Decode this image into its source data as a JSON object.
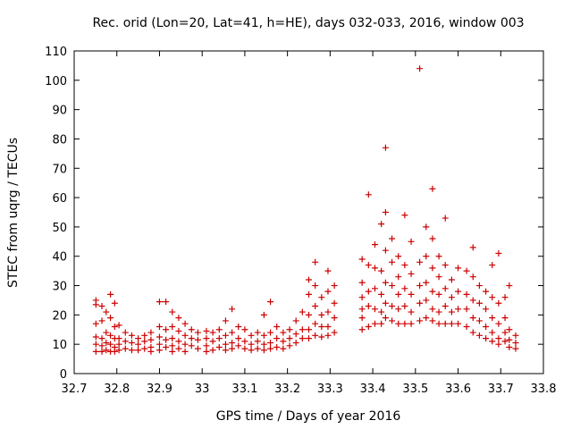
{
  "chart_data": {
    "type": "scatter",
    "title": "Rec. orid (Lon=20, Lat=41, h=HE), days 032-033, 2016, window 003",
    "xlabel": "GPS time / Days of year 2016",
    "ylabel": "STEC from uqrg / TECUs",
    "xlim": [
      32.7,
      33.8
    ],
    "ylim": [
      0,
      110
    ],
    "xticks": [
      "32.7",
      "32.8",
      "32.9",
      "33",
      "33.1",
      "33.2",
      "33.3",
      "33.4",
      "33.5",
      "33.6",
      "33.7",
      "33.8"
    ],
    "yticks": [
      "0",
      "10",
      "20",
      "30",
      "40",
      "50",
      "60",
      "70",
      "80",
      "90",
      "100",
      "110"
    ],
    "grid": false,
    "legend": "none",
    "marker": "plus",
    "color": "#cc0000",
    "series": [
      {
        "values": [
          [
            32.751,
            25
          ],
          [
            32.751,
            23.5
          ],
          [
            32.751,
            17
          ],
          [
            32.751,
            12.5
          ],
          [
            32.751,
            10
          ],
          [
            32.751,
            7.5
          ],
          [
            32.765,
            23
          ],
          [
            32.765,
            18
          ],
          [
            32.765,
            12
          ],
          [
            32.765,
            9.5
          ],
          [
            32.765,
            7.5
          ],
          [
            32.775,
            21
          ],
          [
            32.775,
            14
          ],
          [
            32.775,
            10.5
          ],
          [
            32.775,
            8
          ],
          [
            32.785,
            27
          ],
          [
            32.785,
            19
          ],
          [
            32.785,
            13
          ],
          [
            32.785,
            10
          ],
          [
            32.785,
            7.5
          ],
          [
            32.795,
            24
          ],
          [
            32.795,
            16
          ],
          [
            32.795,
            12
          ],
          [
            32.795,
            9
          ],
          [
            32.795,
            7.5
          ],
          [
            32.805,
            16.5
          ],
          [
            32.805,
            12
          ],
          [
            32.805,
            10
          ],
          [
            32.805,
            8
          ],
          [
            32.82,
            14
          ],
          [
            32.82,
            11
          ],
          [
            32.82,
            8.5
          ],
          [
            32.835,
            13
          ],
          [
            32.835,
            10.5
          ],
          [
            32.835,
            8
          ],
          [
            32.85,
            12
          ],
          [
            32.85,
            10
          ],
          [
            32.85,
            8
          ],
          [
            32.865,
            13
          ],
          [
            32.865,
            11
          ],
          [
            32.865,
            8.5
          ],
          [
            32.88,
            14
          ],
          [
            32.88,
            11.5
          ],
          [
            32.88,
            9
          ],
          [
            32.88,
            7.5
          ],
          [
            32.9,
            24.5
          ],
          [
            32.9,
            16
          ],
          [
            32.9,
            12.5
          ],
          [
            32.9,
            10
          ],
          [
            32.9,
            8
          ],
          [
            32.915,
            24.5
          ],
          [
            32.915,
            15
          ],
          [
            32.915,
            11.5
          ],
          [
            32.915,
            9
          ],
          [
            32.93,
            21
          ],
          [
            32.93,
            16
          ],
          [
            32.93,
            12
          ],
          [
            32.93,
            9.5
          ],
          [
            32.93,
            7.5
          ],
          [
            32.945,
            19
          ],
          [
            32.945,
            14.5
          ],
          [
            32.945,
            11
          ],
          [
            32.945,
            8.5
          ],
          [
            32.96,
            17
          ],
          [
            32.96,
            13
          ],
          [
            32.96,
            10
          ],
          [
            32.96,
            7.5
          ],
          [
            32.975,
            15
          ],
          [
            32.975,
            12
          ],
          [
            32.975,
            9.5
          ],
          [
            32.99,
            14
          ],
          [
            32.99,
            11.5
          ],
          [
            32.99,
            8.5
          ],
          [
            33.01,
            14.5
          ],
          [
            33.01,
            12
          ],
          [
            33.01,
            9.5
          ],
          [
            33.01,
            7.5
          ],
          [
            33.025,
            14
          ],
          [
            33.025,
            11
          ],
          [
            33.025,
            8
          ],
          [
            33.04,
            15
          ],
          [
            33.04,
            12
          ],
          [
            33.04,
            9
          ],
          [
            33.055,
            18
          ],
          [
            33.055,
            13
          ],
          [
            33.055,
            10
          ],
          [
            33.055,
            8
          ],
          [
            33.07,
            22
          ],
          [
            33.07,
            14
          ],
          [
            33.07,
            10.5
          ],
          [
            33.07,
            8.5
          ],
          [
            33.085,
            16
          ],
          [
            33.085,
            12
          ],
          [
            33.085,
            9.5
          ],
          [
            33.1,
            15
          ],
          [
            33.1,
            11
          ],
          [
            33.1,
            8.5
          ],
          [
            33.115,
            13
          ],
          [
            33.115,
            10
          ],
          [
            33.115,
            8
          ],
          [
            33.13,
            14
          ],
          [
            33.13,
            11
          ],
          [
            33.13,
            8.5
          ],
          [
            33.145,
            20
          ],
          [
            33.145,
            13
          ],
          [
            33.145,
            10
          ],
          [
            33.145,
            8
          ],
          [
            33.16,
            24.5
          ],
          [
            33.16,
            14
          ],
          [
            33.16,
            10.5
          ],
          [
            33.16,
            8.5
          ],
          [
            33.175,
            16
          ],
          [
            33.175,
            12
          ],
          [
            33.175,
            9
          ],
          [
            33.19,
            14
          ],
          [
            33.19,
            11
          ],
          [
            33.19,
            8.5
          ],
          [
            33.205,
            15
          ],
          [
            33.205,
            12
          ],
          [
            33.205,
            9.5
          ],
          [
            33.22,
            18
          ],
          [
            33.22,
            13.5
          ],
          [
            33.22,
            10.5
          ],
          [
            33.235,
            21
          ],
          [
            33.235,
            15
          ],
          [
            33.235,
            12
          ],
          [
            33.25,
            32
          ],
          [
            33.25,
            27
          ],
          [
            33.25,
            20
          ],
          [
            33.25,
            15
          ],
          [
            33.25,
            12
          ],
          [
            33.265,
            38
          ],
          [
            33.265,
            30
          ],
          [
            33.265,
            23
          ],
          [
            33.265,
            17
          ],
          [
            33.265,
            13
          ],
          [
            33.28,
            26
          ],
          [
            33.28,
            20
          ],
          [
            33.28,
            16
          ],
          [
            33.28,
            12.5
          ],
          [
            33.295,
            35
          ],
          [
            33.295,
            28
          ],
          [
            33.295,
            21
          ],
          [
            33.295,
            16
          ],
          [
            33.295,
            13
          ],
          [
            33.31,
            30
          ],
          [
            33.31,
            24
          ],
          [
            33.31,
            19
          ],
          [
            33.31,
            14
          ],
          [
            33.375,
            39
          ],
          [
            33.375,
            31
          ],
          [
            33.375,
            26
          ],
          [
            33.375,
            22
          ],
          [
            33.375,
            19
          ],
          [
            33.375,
            15
          ],
          [
            33.39,
            61
          ],
          [
            33.39,
            37
          ],
          [
            33.39,
            28
          ],
          [
            33.39,
            23
          ],
          [
            33.39,
            16
          ],
          [
            33.405,
            44
          ],
          [
            33.405,
            36
          ],
          [
            33.405,
            29
          ],
          [
            33.405,
            22
          ],
          [
            33.405,
            17
          ],
          [
            33.42,
            51
          ],
          [
            33.42,
            35
          ],
          [
            33.42,
            27
          ],
          [
            33.42,
            21
          ],
          [
            33.42,
            17
          ],
          [
            33.43,
            77
          ],
          [
            33.43,
            55
          ],
          [
            33.43,
            42
          ],
          [
            33.43,
            31
          ],
          [
            33.43,
            24
          ],
          [
            33.43,
            19
          ],
          [
            33.445,
            46
          ],
          [
            33.445,
            38
          ],
          [
            33.445,
            30
          ],
          [
            33.445,
            23
          ],
          [
            33.445,
            18
          ],
          [
            33.46,
            40
          ],
          [
            33.46,
            33
          ],
          [
            33.46,
            27
          ],
          [
            33.46,
            22
          ],
          [
            33.46,
            17
          ],
          [
            33.475,
            54
          ],
          [
            33.475,
            37
          ],
          [
            33.475,
            29
          ],
          [
            33.475,
            23
          ],
          [
            33.475,
            17
          ],
          [
            33.49,
            45
          ],
          [
            33.49,
            34
          ],
          [
            33.49,
            27
          ],
          [
            33.49,
            21
          ],
          [
            33.49,
            17
          ],
          [
            33.51,
            104
          ],
          [
            33.51,
            38
          ],
          [
            33.51,
            30
          ],
          [
            33.51,
            24
          ],
          [
            33.51,
            18
          ],
          [
            33.525,
            50
          ],
          [
            33.525,
            40
          ],
          [
            33.525,
            31
          ],
          [
            33.525,
            25
          ],
          [
            33.525,
            19
          ],
          [
            33.54,
            63
          ],
          [
            33.54,
            46
          ],
          [
            33.54,
            36
          ],
          [
            33.54,
            28
          ],
          [
            33.54,
            22
          ],
          [
            33.54,
            18
          ],
          [
            33.555,
            40
          ],
          [
            33.555,
            33
          ],
          [
            33.555,
            27
          ],
          [
            33.555,
            21
          ],
          [
            33.555,
            17
          ],
          [
            33.57,
            53
          ],
          [
            33.57,
            37
          ],
          [
            33.57,
            29
          ],
          [
            33.57,
            23
          ],
          [
            33.57,
            17
          ],
          [
            33.585,
            32
          ],
          [
            33.585,
            26
          ],
          [
            33.585,
            21
          ],
          [
            33.585,
            17
          ],
          [
            33.6,
            36
          ],
          [
            33.6,
            28
          ],
          [
            33.6,
            22
          ],
          [
            33.6,
            17
          ],
          [
            33.62,
            35
          ],
          [
            33.62,
            27
          ],
          [
            33.62,
            22
          ],
          [
            33.62,
            16
          ],
          [
            33.635,
            43
          ],
          [
            33.635,
            33
          ],
          [
            33.635,
            25
          ],
          [
            33.635,
            19
          ],
          [
            33.635,
            14
          ],
          [
            33.65,
            30
          ],
          [
            33.65,
            24
          ],
          [
            33.65,
            18
          ],
          [
            33.65,
            13
          ],
          [
            33.665,
            28
          ],
          [
            33.665,
            22
          ],
          [
            33.665,
            16
          ],
          [
            33.665,
            12
          ],
          [
            33.68,
            37
          ],
          [
            33.68,
            26
          ],
          [
            33.68,
            19
          ],
          [
            33.68,
            14
          ],
          [
            33.68,
            11
          ],
          [
            33.695,
            41
          ],
          [
            33.695,
            24
          ],
          [
            33.695,
            17
          ],
          [
            33.695,
            12
          ],
          [
            33.695,
            10
          ],
          [
            33.71,
            26
          ],
          [
            33.71,
            19
          ],
          [
            33.71,
            14
          ],
          [
            33.71,
            11
          ],
          [
            33.72,
            30
          ],
          [
            33.72,
            15
          ],
          [
            33.72,
            11.5
          ],
          [
            33.72,
            9
          ],
          [
            33.735,
            13
          ],
          [
            33.735,
            10.5
          ],
          [
            33.735,
            8.5
          ]
        ]
      }
    ]
  }
}
